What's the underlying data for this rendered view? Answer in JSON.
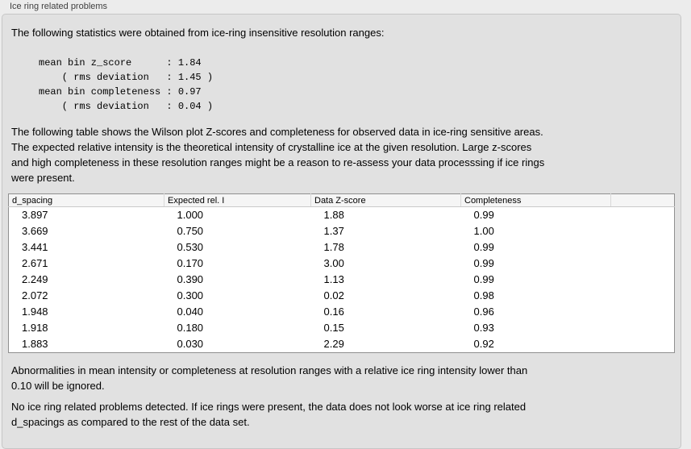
{
  "colors": {
    "page_bg": "#ececec",
    "panel_bg": "#e1e1e1",
    "panel_border": "#c6c6c6",
    "table_border": "#8f8f8f",
    "table_header_bg": "#f5f5f5",
    "text": "#000000",
    "title_text": "#3f3f3f"
  },
  "panel": {
    "title": "Ice ring related problems",
    "intro": "The following statistics were obtained from ice-ring insensitive resolution ranges:",
    "stats_lines": [
      "mean bin z_score      : 1.84",
      "    ( rms deviation   : 1.45 )",
      "mean bin completeness : 0.97",
      "    ( rms deviation   : 0.04 )"
    ],
    "stats": {
      "mean_bin_z_score": "1.84",
      "z_score_rms_deviation": "1.45",
      "mean_bin_completeness": "0.97",
      "completeness_rms_deviation": "0.04"
    },
    "description_lines": [
      "The following table shows the Wilson plot Z-scores and completeness for observed data in ice-ring sensitive areas.",
      "The expected relative intensity is the theoretical intensity of crystalline ice at the given resolution. Large z-scores",
      "and high completeness in these resolution ranges might be a reason to re-assess your data processsing if ice rings",
      "were present."
    ],
    "ignore_note_lines": [
      "Abnormalities in mean intensity or completeness at resolution ranges with a relative ice ring intensity lower than",
      "0.10 will be ignored."
    ],
    "conclusion_lines": [
      "No ice ring related problems detected. If ice rings were present, the data does not look worse at ice ring related",
      "d_spacings as compared to the rest of the data set."
    ]
  },
  "ice_ring_table": {
    "headers": [
      "d_spacing",
      "Expected rel. I",
      "Data Z-score",
      "Completeness",
      ""
    ],
    "rows": [
      [
        "3.897",
        "1.000",
        "1.88",
        "0.99"
      ],
      [
        "3.669",
        "0.750",
        "1.37",
        "1.00"
      ],
      [
        "3.441",
        "0.530",
        "1.78",
        "0.99"
      ],
      [
        "2.671",
        "0.170",
        "3.00",
        "0.99"
      ],
      [
        "2.249",
        "0.390",
        "1.13",
        "0.99"
      ],
      [
        "2.072",
        "0.300",
        "0.02",
        "0.98"
      ],
      [
        "1.948",
        "0.040",
        "0.16",
        "0.96"
      ],
      [
        "1.918",
        "0.180",
        "0.15",
        "0.93"
      ],
      [
        "1.883",
        "0.030",
        "2.29",
        "0.92"
      ]
    ]
  }
}
